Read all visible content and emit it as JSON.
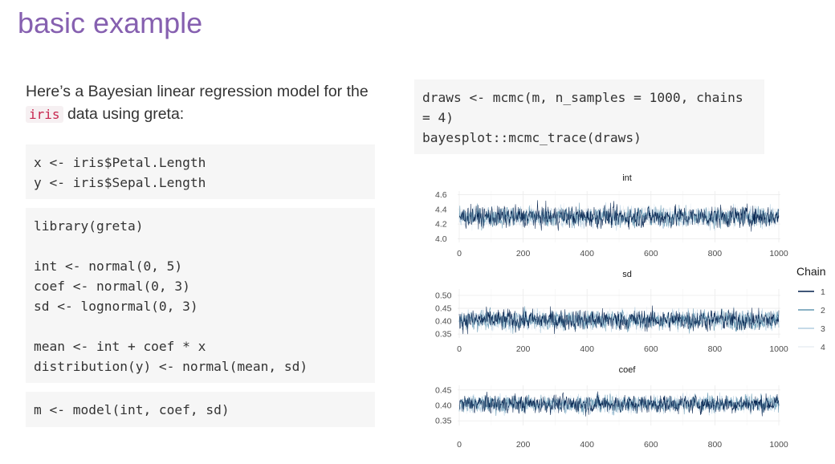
{
  "slide": {
    "title": "basic example",
    "intro": {
      "text_before": "Here’s a Bayesian linear regression model for the ",
      "inline_code": "iris",
      "text_after": " data using greta:"
    },
    "code_blocks": [
      [
        "x <- iris$Petal.Length",
        "y <- iris$Sepal.Length"
      ],
      [
        "library(greta)",
        "",
        "int <- normal(0, 5)",
        "coef <- normal(0, 3)",
        "sd <- lognormal(0, 3)",
        "",
        "mean <- int + coef * x",
        "distribution(y) <- normal(mean, sd)"
      ],
      [
        "m <- model(int, coef, sd)"
      ],
      [
        "draws <- mcmc(m, n_samples = 1000, chains",
        "= 4)",
        "bayesplot::mcmc_trace(draws)"
      ]
    ]
  },
  "chart_data": {
    "type": "line",
    "legend": {
      "title": "Chain",
      "entries": [
        "1",
        "2",
        "3",
        "4"
      ],
      "placement": "right"
    },
    "series_colors": [
      "#011f4b",
      "#6497b1",
      "#b3cde0",
      "#e8eef4"
    ],
    "panels": [
      {
        "title": "int",
        "xlim": [
          0,
          1000
        ],
        "xticks": [
          0,
          200,
          400,
          600,
          800,
          1000
        ],
        "ylim": [
          3.95,
          4.65
        ],
        "yticks": [
          4.0,
          4.2,
          4.4,
          4.6
        ],
        "ytick_labels": [
          "4.0",
          "4.2",
          "4.4",
          "4.6"
        ],
        "center": 4.3,
        "spread": 0.09
      },
      {
        "title": "sd",
        "xlim": [
          0,
          1000
        ],
        "xticks": [
          0,
          200,
          400,
          600,
          800,
          1000
        ],
        "ylim": [
          0.335,
          0.525
        ],
        "yticks": [
          0.35,
          0.4,
          0.45,
          0.5
        ],
        "ytick_labels": [
          "0.35",
          "0.40",
          "0.45",
          "0.50"
        ],
        "center": 0.405,
        "spread": 0.025
      },
      {
        "title": "coef",
        "xlim": [
          0,
          1000
        ],
        "xticks": [
          0,
          200,
          400,
          600,
          800,
          1000
        ],
        "ylim": [
          0.335,
          0.465
        ],
        "yticks": [
          0.35,
          0.4,
          0.45
        ],
        "ytick_labels": [
          "0.35",
          "0.40",
          "0.45"
        ],
        "center": 0.405,
        "spread": 0.018
      }
    ]
  }
}
